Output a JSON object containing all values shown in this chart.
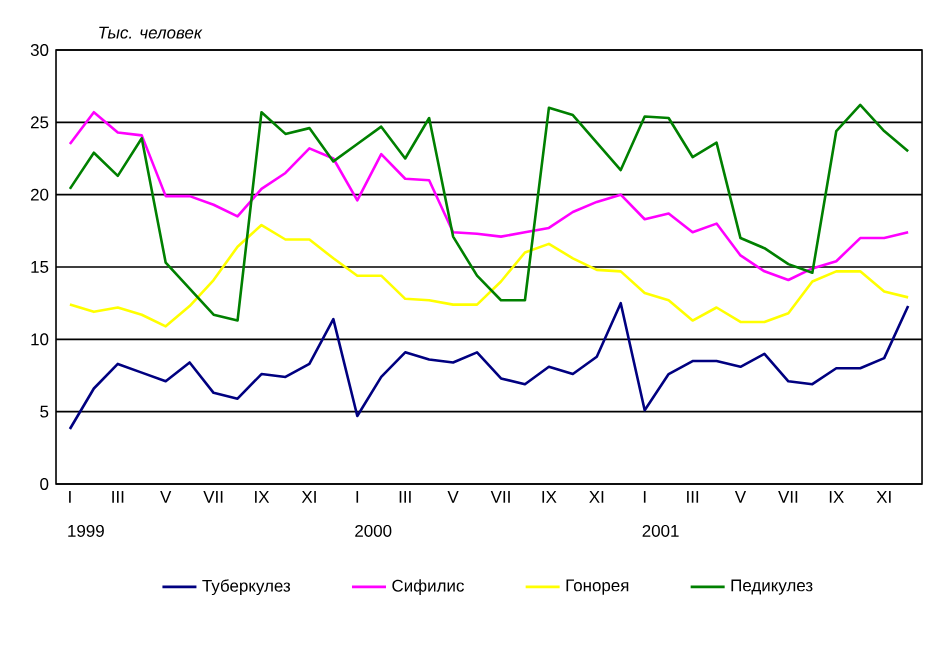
{
  "chart_data": {
    "type": "line",
    "ylabel": "Тыс. человек",
    "categories": [
      "I",
      null,
      "III",
      null,
      "V",
      null,
      "VII",
      null,
      "IX",
      null,
      "XI",
      null,
      "I",
      null,
      "III",
      null,
      "V",
      null,
      "VII",
      null,
      "IX",
      null,
      "XI",
      null,
      "I",
      null,
      "III",
      null,
      "V",
      null,
      "VII",
      null,
      "IX",
      null,
      "XI",
      null
    ],
    "series": [
      {
        "name": "Туберкулез",
        "color": "#000080",
        "values": [
          3.8,
          6.6,
          8.3,
          7.7,
          7.1,
          8.4,
          6.3,
          5.9,
          7.6,
          7.4,
          8.3,
          11.4,
          4.7,
          7.4,
          9.1,
          8.6,
          8.4,
          9.1,
          7.3,
          6.9,
          8.1,
          7.6,
          8.8,
          12.5,
          5.1,
          7.6,
          8.5,
          8.5,
          8.1,
          9.0,
          7.1,
          6.9,
          8.0,
          8.0,
          8.7,
          12.3
        ]
      },
      {
        "name": "Сифилис",
        "color": "#ff00ff",
        "values": [
          23.5,
          25.7,
          24.3,
          24.1,
          19.9,
          19.9,
          19.3,
          18.5,
          20.4,
          21.5,
          23.2,
          22.5,
          19.6,
          22.8,
          21.1,
          21.0,
          17.4,
          17.3,
          17.1,
          17.4,
          17.7,
          18.8,
          19.5,
          20.0,
          18.3,
          18.7,
          17.4,
          18.0,
          15.8,
          14.7,
          14.1,
          14.9,
          15.4,
          17.0,
          17.0,
          17.4
        ]
      },
      {
        "name": "Гонорея",
        "color": "#ffff00",
        "values": [
          12.4,
          11.9,
          12.2,
          11.7,
          10.9,
          12.3,
          14.1,
          16.4,
          17.9,
          16.9,
          16.9,
          15.6,
          14.4,
          14.4,
          12.8,
          12.7,
          12.4,
          12.4,
          14.0,
          16.0,
          16.6,
          15.6,
          14.8,
          14.7,
          13.2,
          12.7,
          11.3,
          12.2,
          11.2,
          11.2,
          11.8,
          14.0,
          14.7,
          14.7,
          13.3,
          12.9
        ]
      },
      {
        "name": "Педикулез",
        "color": "#008000",
        "values": [
          20.4,
          22.9,
          21.3,
          23.9,
          15.3,
          13.5,
          11.7,
          11.3,
          25.7,
          24.2,
          24.6,
          22.3,
          23.5,
          24.7,
          22.5,
          25.3,
          17.1,
          14.4,
          12.7,
          12.7,
          26.0,
          25.5,
          23.6,
          21.7,
          25.4,
          25.3,
          22.6,
          23.6,
          17.0,
          16.3,
          15.2,
          14.6,
          24.4,
          26.2,
          24.4,
          23.0
        ]
      }
    ],
    "ylim": [
      0,
      30
    ],
    "yticks": [
      0,
      5,
      10,
      15,
      20,
      25,
      30
    ],
    "grid": "y",
    "legend": "bottom",
    "annotations": [
      "1999",
      "2000",
      "2001"
    ]
  }
}
